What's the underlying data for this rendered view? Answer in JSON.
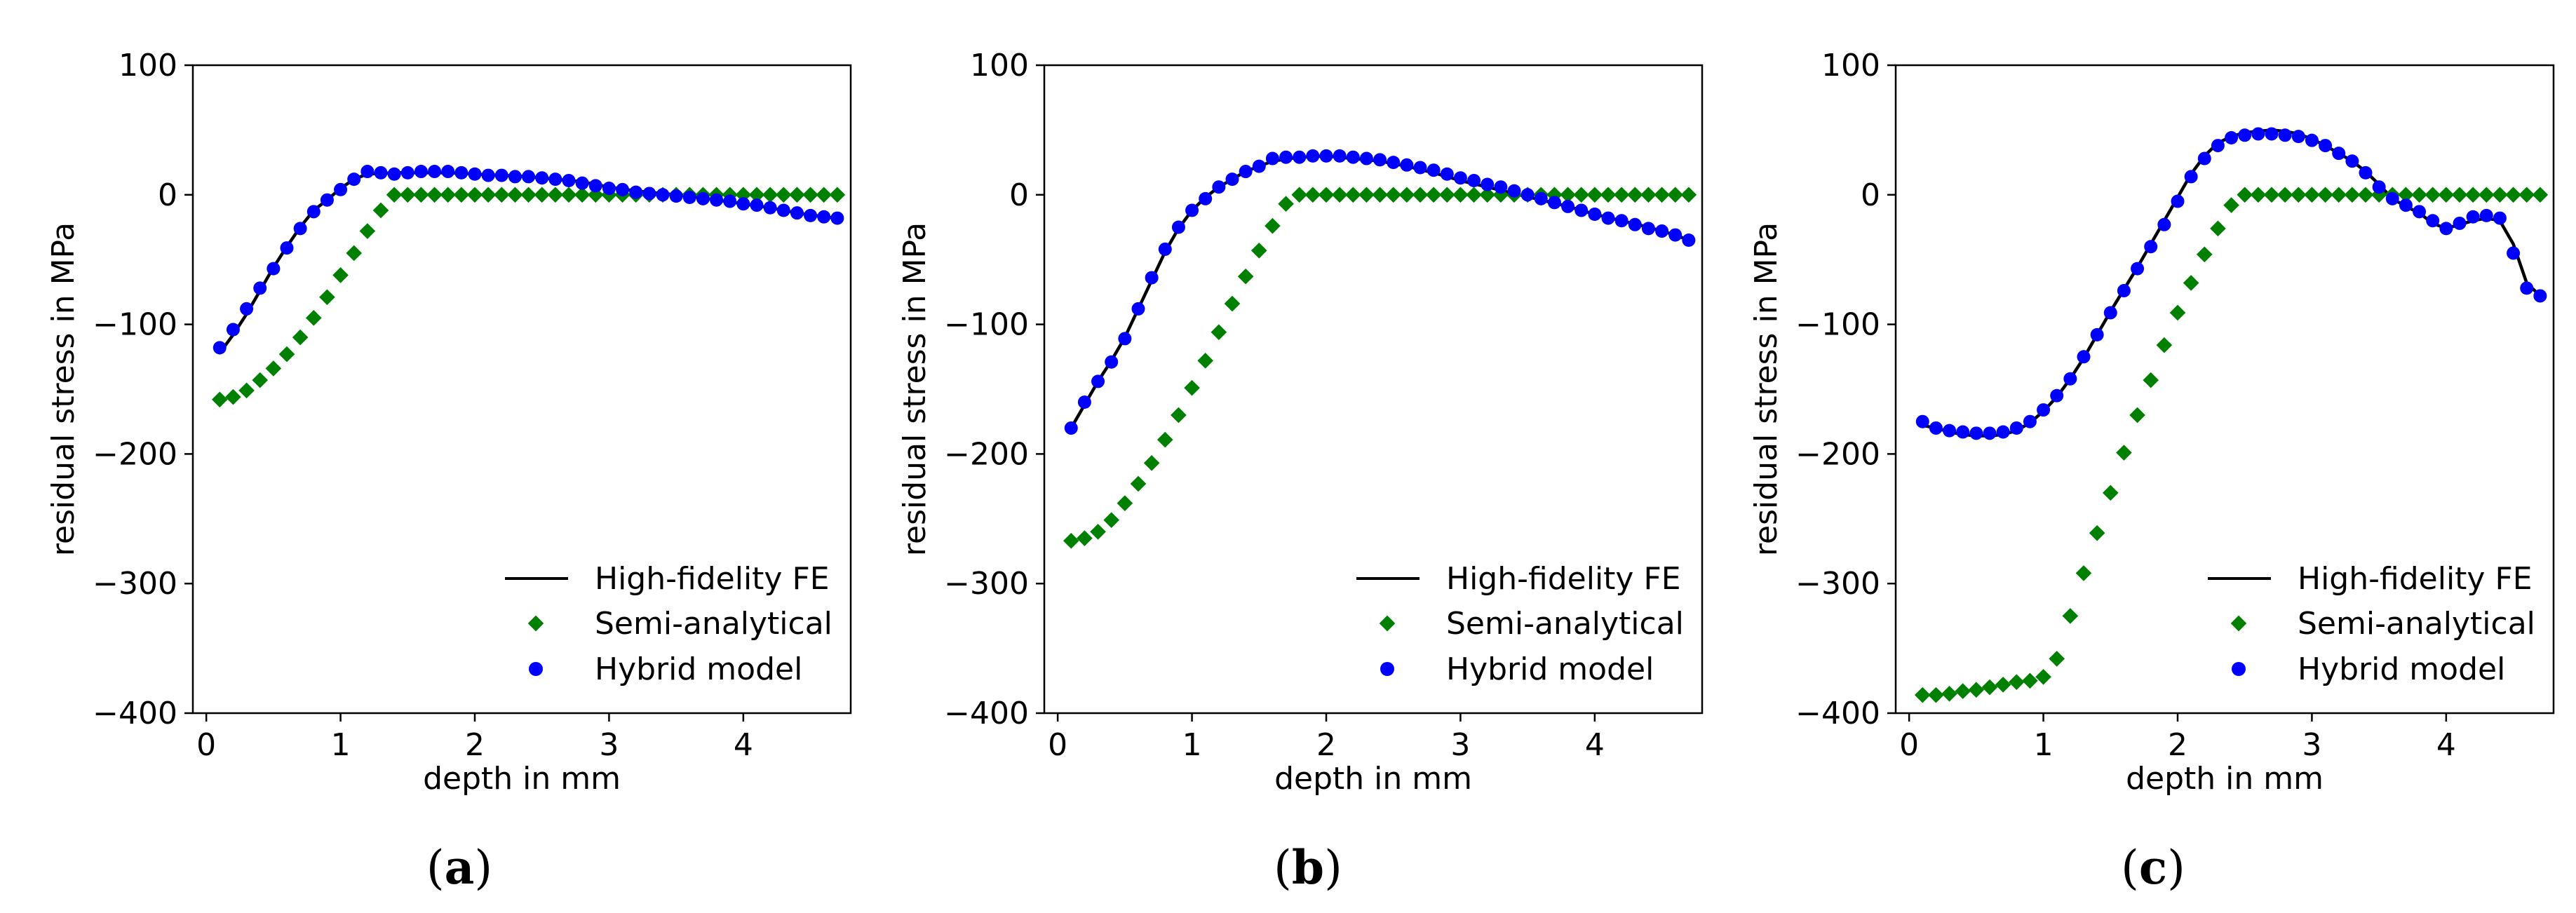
{
  "chart_data": [
    {
      "panel": "a",
      "type": "line",
      "xlabel": "depth in mm",
      "ylabel": "residual stress in MPa",
      "xlim": [
        -0.1,
        4.8
      ],
      "ylim": [
        -400,
        100
      ],
      "xticks": [
        0,
        1,
        2,
        3,
        4
      ],
      "yticks": [
        100,
        0,
        -100,
        -200,
        -300,
        -400
      ],
      "xtick_labels": [
        "0",
        "1",
        "2",
        "3",
        "4"
      ],
      "ytick_labels": [
        "100",
        "0",
        "−100",
        "−200",
        "−300",
        "−400"
      ],
      "legend": {
        "position": "lower-right",
        "entries": [
          "High-fidelity FE",
          "Semi-analytical",
          "Hybrid model"
        ]
      },
      "series": [
        {
          "name": "High-fidelity FE",
          "style": "line",
          "color": "#000000",
          "x": [
            0.1,
            0.2,
            0.3,
            0.4,
            0.5,
            0.6,
            0.7,
            0.8,
            0.9,
            1.0,
            1.1,
            1.2,
            1.4,
            1.6,
            1.8,
            2.0,
            2.2,
            2.4,
            2.6,
            2.8,
            3.0,
            3.2,
            3.4,
            3.6,
            3.8,
            4.0,
            4.2,
            4.4,
            4.6,
            4.7
          ],
          "y": [
            -122,
            -108,
            -92,
            -74,
            -56,
            -40,
            -25,
            -12,
            -4,
            5,
            12,
            16,
            17,
            17,
            17,
            16,
            15,
            14,
            12,
            10,
            6,
            3,
            1,
            -1,
            -4,
            -7,
            -10,
            -14,
            -17,
            -18
          ]
        },
        {
          "name": "Semi-analytical",
          "style": "diamond",
          "color": "#008000",
          "x": [
            0.1,
            0.2,
            0.3,
            0.4,
            0.5,
            0.6,
            0.7,
            0.8,
            0.9,
            1.0,
            1.1,
            1.2,
            1.3,
            1.4,
            1.5,
            1.6,
            1.7,
            1.8,
            1.9,
            2.0,
            2.1,
            2.2,
            2.3,
            2.4,
            2.5,
            2.6,
            2.7,
            2.8,
            2.9,
            3.0,
            3.1,
            3.2,
            3.3,
            3.4,
            3.5,
            3.6,
            3.7,
            3.8,
            3.9,
            4.0,
            4.1,
            4.2,
            4.3,
            4.4,
            4.5,
            4.6,
            4.7
          ],
          "y": [
            -158,
            -156,
            -151,
            -143,
            -134,
            -123,
            -110,
            -95,
            -79,
            -62,
            -45,
            -28,
            -12,
            0,
            0,
            0,
            0,
            0,
            0,
            0,
            0,
            0,
            0,
            0,
            0,
            0,
            0,
            0,
            0,
            0,
            0,
            0,
            0,
            0,
            0,
            0,
            0,
            0,
            0,
            0,
            0,
            0,
            0,
            0,
            0,
            0,
            0
          ]
        },
        {
          "name": "Hybrid model",
          "style": "dot",
          "color": "#0000ff",
          "x": [
            0.1,
            0.2,
            0.3,
            0.4,
            0.5,
            0.6,
            0.7,
            0.8,
            0.9,
            1.0,
            1.1,
            1.2,
            1.3,
            1.4,
            1.5,
            1.6,
            1.7,
            1.8,
            1.9,
            2.0,
            2.1,
            2.2,
            2.3,
            2.4,
            2.5,
            2.6,
            2.7,
            2.8,
            2.9,
            3.0,
            3.1,
            3.2,
            3.3,
            3.4,
            3.5,
            3.6,
            3.7,
            3.8,
            3.9,
            4.0,
            4.1,
            4.2,
            4.3,
            4.4,
            4.5,
            4.6,
            4.7
          ],
          "y": [
            -118,
            -104,
            -88,
            -72,
            -57,
            -41,
            -26,
            -13,
            -4,
            4,
            12,
            18,
            17,
            16,
            17,
            18,
            18,
            18,
            17,
            16,
            15,
            15,
            14,
            14,
            13,
            12,
            11,
            9,
            7,
            5,
            4,
            2,
            1,
            0,
            -1,
            -2,
            -3,
            -4,
            -5,
            -7,
            -8,
            -10,
            -12,
            -14,
            -16,
            -17,
            -18
          ]
        }
      ]
    },
    {
      "panel": "b",
      "type": "line",
      "xlabel": "depth in mm",
      "ylabel": "residual stress in MPa",
      "xlim": [
        -0.1,
        4.8
      ],
      "ylim": [
        -400,
        100
      ],
      "xticks": [
        0,
        1,
        2,
        3,
        4
      ],
      "yticks": [
        100,
        0,
        -100,
        -200,
        -300,
        -400
      ],
      "xtick_labels": [
        "0",
        "1",
        "2",
        "3",
        "4"
      ],
      "ytick_labels": [
        "100",
        "0",
        "−100",
        "−200",
        "−300",
        "−400"
      ],
      "legend": {
        "position": "lower-right",
        "entries": [
          "High-fidelity FE",
          "Semi-analytical",
          "Hybrid model"
        ]
      },
      "series": [
        {
          "name": "High-fidelity FE",
          "style": "line",
          "color": "#000000",
          "x": [
            0.1,
            0.2,
            0.3,
            0.4,
            0.5,
            0.6,
            0.7,
            0.8,
            0.9,
            1.0,
            1.1,
            1.2,
            1.3,
            1.4,
            1.6,
            1.8,
            2.0,
            2.2,
            2.4,
            2.6,
            2.8,
            3.0,
            3.2,
            3.4,
            3.6,
            3.8,
            4.0,
            4.2,
            4.4,
            4.6,
            4.7
          ],
          "y": [
            -180,
            -162,
            -144,
            -128,
            -110,
            -88,
            -66,
            -44,
            -26,
            -12,
            -2,
            6,
            12,
            18,
            26,
            29,
            30,
            28,
            26,
            22,
            17,
            11,
            6,
            1,
            -4,
            -9,
            -15,
            -20,
            -25,
            -31,
            -35
          ]
        },
        {
          "name": "Semi-analytical",
          "style": "diamond",
          "color": "#008000",
          "x": [
            0.1,
            0.2,
            0.3,
            0.4,
            0.5,
            0.6,
            0.7,
            0.8,
            0.9,
            1.0,
            1.1,
            1.2,
            1.3,
            1.4,
            1.5,
            1.6,
            1.7,
            1.8,
            1.9,
            2.0,
            2.1,
            2.2,
            2.3,
            2.4,
            2.5,
            2.6,
            2.7,
            2.8,
            2.9,
            3.0,
            3.1,
            3.2,
            3.3,
            3.4,
            3.5,
            3.6,
            3.7,
            3.8,
            3.9,
            4.0,
            4.1,
            4.2,
            4.3,
            4.4,
            4.5,
            4.6,
            4.7
          ],
          "y": [
            -267,
            -265,
            -260,
            -251,
            -238,
            -223,
            -207,
            -189,
            -170,
            -149,
            -128,
            -106,
            -84,
            -63,
            -43,
            -24,
            -7,
            0,
            0,
            0,
            0,
            0,
            0,
            0,
            0,
            0,
            0,
            0,
            0,
            0,
            0,
            0,
            0,
            0,
            0,
            0,
            0,
            0,
            0,
            0,
            0,
            0,
            0,
            0,
            0,
            0,
            0
          ]
        },
        {
          "name": "Hybrid model",
          "style": "dot",
          "color": "#0000ff",
          "x": [
            0.1,
            0.2,
            0.3,
            0.4,
            0.5,
            0.6,
            0.7,
            0.8,
            0.9,
            1.0,
            1.1,
            1.2,
            1.3,
            1.4,
            1.5,
            1.6,
            1.7,
            1.8,
            1.9,
            2.0,
            2.1,
            2.2,
            2.3,
            2.4,
            2.5,
            2.6,
            2.7,
            2.8,
            2.9,
            3.0,
            3.1,
            3.2,
            3.3,
            3.4,
            3.5,
            3.6,
            3.7,
            3.8,
            3.9,
            4.0,
            4.1,
            4.2,
            4.3,
            4.4,
            4.5,
            4.6,
            4.7
          ],
          "y": [
            -180,
            -160,
            -144,
            -129,
            -111,
            -88,
            -64,
            -42,
            -25,
            -12,
            -3,
            6,
            12,
            18,
            22,
            28,
            29,
            29,
            30,
            30,
            30,
            29,
            28,
            27,
            25,
            23,
            21,
            19,
            16,
            13,
            11,
            8,
            6,
            3,
            0,
            -3,
            -6,
            -9,
            -12,
            -15,
            -18,
            -20,
            -23,
            -26,
            -28,
            -31,
            -35
          ]
        }
      ]
    },
    {
      "panel": "c",
      "type": "line",
      "xlabel": "depth in mm",
      "ylabel": "residual stress in MPa",
      "xlim": [
        -0.1,
        4.8
      ],
      "ylim": [
        -400,
        100
      ],
      "xticks": [
        0,
        1,
        2,
        3,
        4
      ],
      "yticks": [
        100,
        0,
        -100,
        -200,
        -300,
        -400
      ],
      "xtick_labels": [
        "0",
        "1",
        "2",
        "3",
        "4"
      ],
      "ytick_labels": [
        "100",
        "0",
        "−100",
        "−200",
        "−300",
        "−400"
      ],
      "legend": {
        "position": "lower-right",
        "entries": [
          "High-fidelity FE",
          "Semi-analytical",
          "Hybrid model"
        ]
      },
      "series": [
        {
          "name": "High-fidelity FE",
          "style": "line",
          "color": "#000000",
          "x": [
            0.1,
            0.2,
            0.3,
            0.4,
            0.5,
            0.6,
            0.7,
            0.8,
            0.9,
            1.0,
            1.1,
            1.2,
            1.3,
            1.4,
            1.5,
            1.6,
            1.7,
            1.8,
            1.9,
            2.0,
            2.1,
            2.2,
            2.3,
            2.4,
            2.5,
            2.6,
            2.7,
            2.8,
            2.9,
            3.0,
            3.1,
            3.2,
            3.3,
            3.4,
            3.5,
            3.6,
            3.7,
            3.8,
            3.9,
            4.0,
            4.1,
            4.2,
            4.3,
            4.4,
            4.5,
            4.6,
            4.7
          ],
          "y": [
            -178,
            -180,
            -183,
            -185,
            -186,
            -186,
            -185,
            -182,
            -176,
            -167,
            -156,
            -142,
            -126,
            -108,
            -90,
            -73,
            -56,
            -38,
            -20,
            -2,
            16,
            30,
            40,
            45,
            48,
            49,
            50,
            49,
            47,
            43,
            38,
            32,
            26,
            18,
            8,
            -3,
            -9,
            -14,
            -22,
            -26,
            -23,
            -20,
            -18,
            -20,
            -38,
            -68,
            -78
          ]
        },
        {
          "name": "Semi-analytical",
          "style": "diamond",
          "color": "#008000",
          "x": [
            0.1,
            0.2,
            0.3,
            0.4,
            0.5,
            0.6,
            0.7,
            0.8,
            0.9,
            1.0,
            1.1,
            1.2,
            1.3,
            1.4,
            1.5,
            1.6,
            1.7,
            1.8,
            1.9,
            2.0,
            2.1,
            2.2,
            2.3,
            2.4,
            2.5,
            2.6,
            2.7,
            2.8,
            2.9,
            3.0,
            3.1,
            3.2,
            3.3,
            3.4,
            3.5,
            3.6,
            3.7,
            3.8,
            3.9,
            4.0,
            4.1,
            4.2,
            4.3,
            4.4,
            4.5,
            4.6,
            4.7
          ],
          "y": [
            -386,
            -386,
            -385,
            -383,
            -382,
            -380,
            -378,
            -376,
            -375,
            -372,
            -358,
            -325,
            -292,
            -261,
            -230,
            -199,
            -170,
            -143,
            -116,
            -91,
            -68,
            -46,
            -26,
            -8,
            0,
            0,
            0,
            0,
            0,
            0,
            0,
            0,
            0,
            0,
            0,
            0,
            0,
            0,
            0,
            0,
            0,
            0,
            0,
            0,
            0,
            0,
            0
          ]
        },
        {
          "name": "Hybrid model",
          "style": "dot",
          "color": "#0000ff",
          "x": [
            0.1,
            0.2,
            0.3,
            0.4,
            0.5,
            0.6,
            0.7,
            0.8,
            0.9,
            1.0,
            1.1,
            1.2,
            1.3,
            1.4,
            1.5,
            1.6,
            1.7,
            1.8,
            1.9,
            2.0,
            2.1,
            2.2,
            2.3,
            2.4,
            2.5,
            2.6,
            2.7,
            2.8,
            2.9,
            3.0,
            3.1,
            3.2,
            3.3,
            3.4,
            3.5,
            3.6,
            3.7,
            3.8,
            3.9,
            4.0,
            4.1,
            4.2,
            4.3,
            4.4,
            4.5,
            4.6,
            4.7
          ],
          "y": [
            -175,
            -180,
            -182,
            -183,
            -184,
            -184,
            -183,
            -180,
            -175,
            -166,
            -155,
            -142,
            -125,
            -108,
            -91,
            -74,
            -57,
            -40,
            -23,
            -5,
            14,
            28,
            38,
            44,
            46,
            47,
            47,
            46,
            45,
            42,
            38,
            32,
            26,
            17,
            6,
            -3,
            -8,
            -13,
            -20,
            -26,
            -22,
            -17,
            -16,
            -18,
            -45,
            -72,
            -78
          ]
        }
      ]
    }
  ],
  "panel_labels": [
    {
      "open": "(",
      "letter": "a",
      "close": ")"
    },
    {
      "open": "(",
      "letter": "b",
      "close": ")"
    },
    {
      "open": "(",
      "letter": "c",
      "close": ")"
    }
  ]
}
